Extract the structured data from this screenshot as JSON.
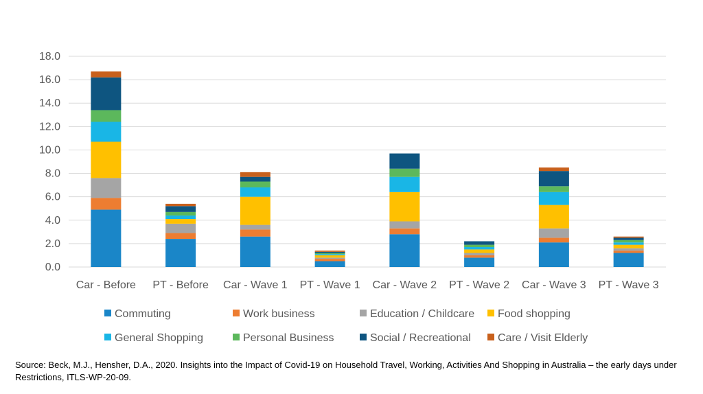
{
  "chart_data": {
    "type": "bar",
    "stacked": true,
    "categories": [
      "Car - Before",
      "PT - Before",
      "Car - Wave 1",
      "PT - Wave 1",
      "Car - Wave 2",
      "PT - Wave 2",
      "Car - Wave 3",
      "PT - Wave 3"
    ],
    "ylim": [
      0,
      18
    ],
    "yticks": [
      "0.0",
      "2.0",
      "4.0",
      "6.0",
      "8.0",
      "10.0",
      "12.0",
      "14.0",
      "16.0",
      "18.0"
    ],
    "grid": true,
    "legend_position": "bottom",
    "series": [
      {
        "name": "Commuting",
        "color": "#1a86c8",
        "values": [
          4.9,
          2.4,
          2.6,
          0.5,
          2.8,
          0.8,
          2.1,
          1.2
        ]
      },
      {
        "name": "Work business",
        "color": "#ed7d31",
        "values": [
          1.0,
          0.5,
          0.6,
          0.2,
          0.5,
          0.2,
          0.4,
          0.2
        ]
      },
      {
        "name": "Education / Childcare",
        "color": "#a5a5a5",
        "values": [
          1.7,
          0.8,
          0.4,
          0.1,
          0.6,
          0.2,
          0.8,
          0.2
        ]
      },
      {
        "name": "Food shopping",
        "color": "#ffc000",
        "values": [
          3.1,
          0.4,
          2.4,
          0.2,
          2.5,
          0.3,
          2.0,
          0.3
        ]
      },
      {
        "name": "General Shopping",
        "color": "#19b6e6",
        "values": [
          1.7,
          0.3,
          0.8,
          0.1,
          1.3,
          0.2,
          1.1,
          0.2
        ]
      },
      {
        "name": "Personal Business",
        "color": "#5cb85c",
        "values": [
          1.0,
          0.3,
          0.5,
          0.1,
          0.7,
          0.2,
          0.5,
          0.2
        ]
      },
      {
        "name": "Social / Recreational",
        "color": "#0e5580",
        "values": [
          2.8,
          0.5,
          0.4,
          0.1,
          1.3,
          0.3,
          1.3,
          0.2
        ]
      },
      {
        "name": "Care / Visit Elderly",
        "color": "#c8601c",
        "values": [
          0.5,
          0.2,
          0.4,
          0.1,
          0.0,
          0.0,
          0.3,
          0.1
        ]
      }
    ]
  },
  "source_note": "Source: Beck, M.J., Hensher, D.A., 2020. Insights into the Impact of Covid-19 on Household Travel, Working, Activities And Shopping in Australia – the early days under Restrictions, ITLS-WP-20-09."
}
